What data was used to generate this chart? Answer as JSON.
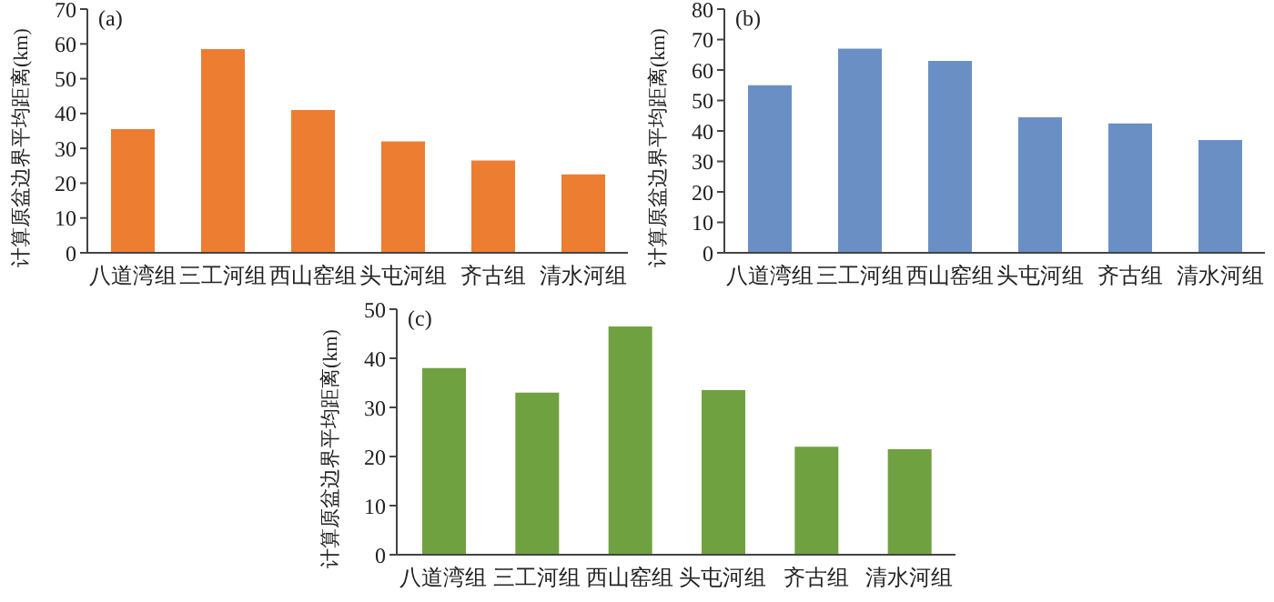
{
  "chart_data": [
    {
      "type": "bar",
      "title": "(a)",
      "ylabel": "计算原盆边界平均距离(km)",
      "categories": [
        "八道湾组",
        "三工河组",
        "西山窑组",
        "头屯河组",
        "齐古组",
        "清水河组"
      ],
      "values": [
        35.5,
        58.5,
        41,
        32,
        26.5,
        22.5
      ],
      "color": "#ed7d31",
      "ylim": [
        0,
        70
      ],
      "yticks": [
        0,
        10,
        20,
        30,
        40,
        50,
        60,
        70
      ],
      "grid": false,
      "legend": false
    },
    {
      "type": "bar",
      "title": "(b)",
      "ylabel": "计算原盆边界平均距离(km)",
      "categories": [
        "八道湾组",
        "三工河组",
        "西山窑组",
        "头屯河组",
        "齐古组",
        "清水河组"
      ],
      "values": [
        55,
        67,
        63,
        44.5,
        42.5,
        37
      ],
      "color": "#6a8fc5",
      "ylim": [
        0,
        80
      ],
      "yticks": [
        0,
        10,
        20,
        30,
        40,
        50,
        60,
        70,
        80
      ],
      "grid": false,
      "legend": false
    },
    {
      "type": "bar",
      "title": "(c)",
      "ylabel": "计算原盆边界平均距离(km)",
      "categories": [
        "八道湾组",
        "三工河组",
        "西山窑组",
        "头屯河组",
        "齐古组",
        "清水河组"
      ],
      "values": [
        38,
        33,
        46.5,
        33.5,
        22,
        21.5
      ],
      "color": "#70a140",
      "ylim": [
        0,
        50
      ],
      "yticks": [
        0,
        10,
        20,
        30,
        40,
        50
      ],
      "grid": false,
      "legend": false
    }
  ]
}
